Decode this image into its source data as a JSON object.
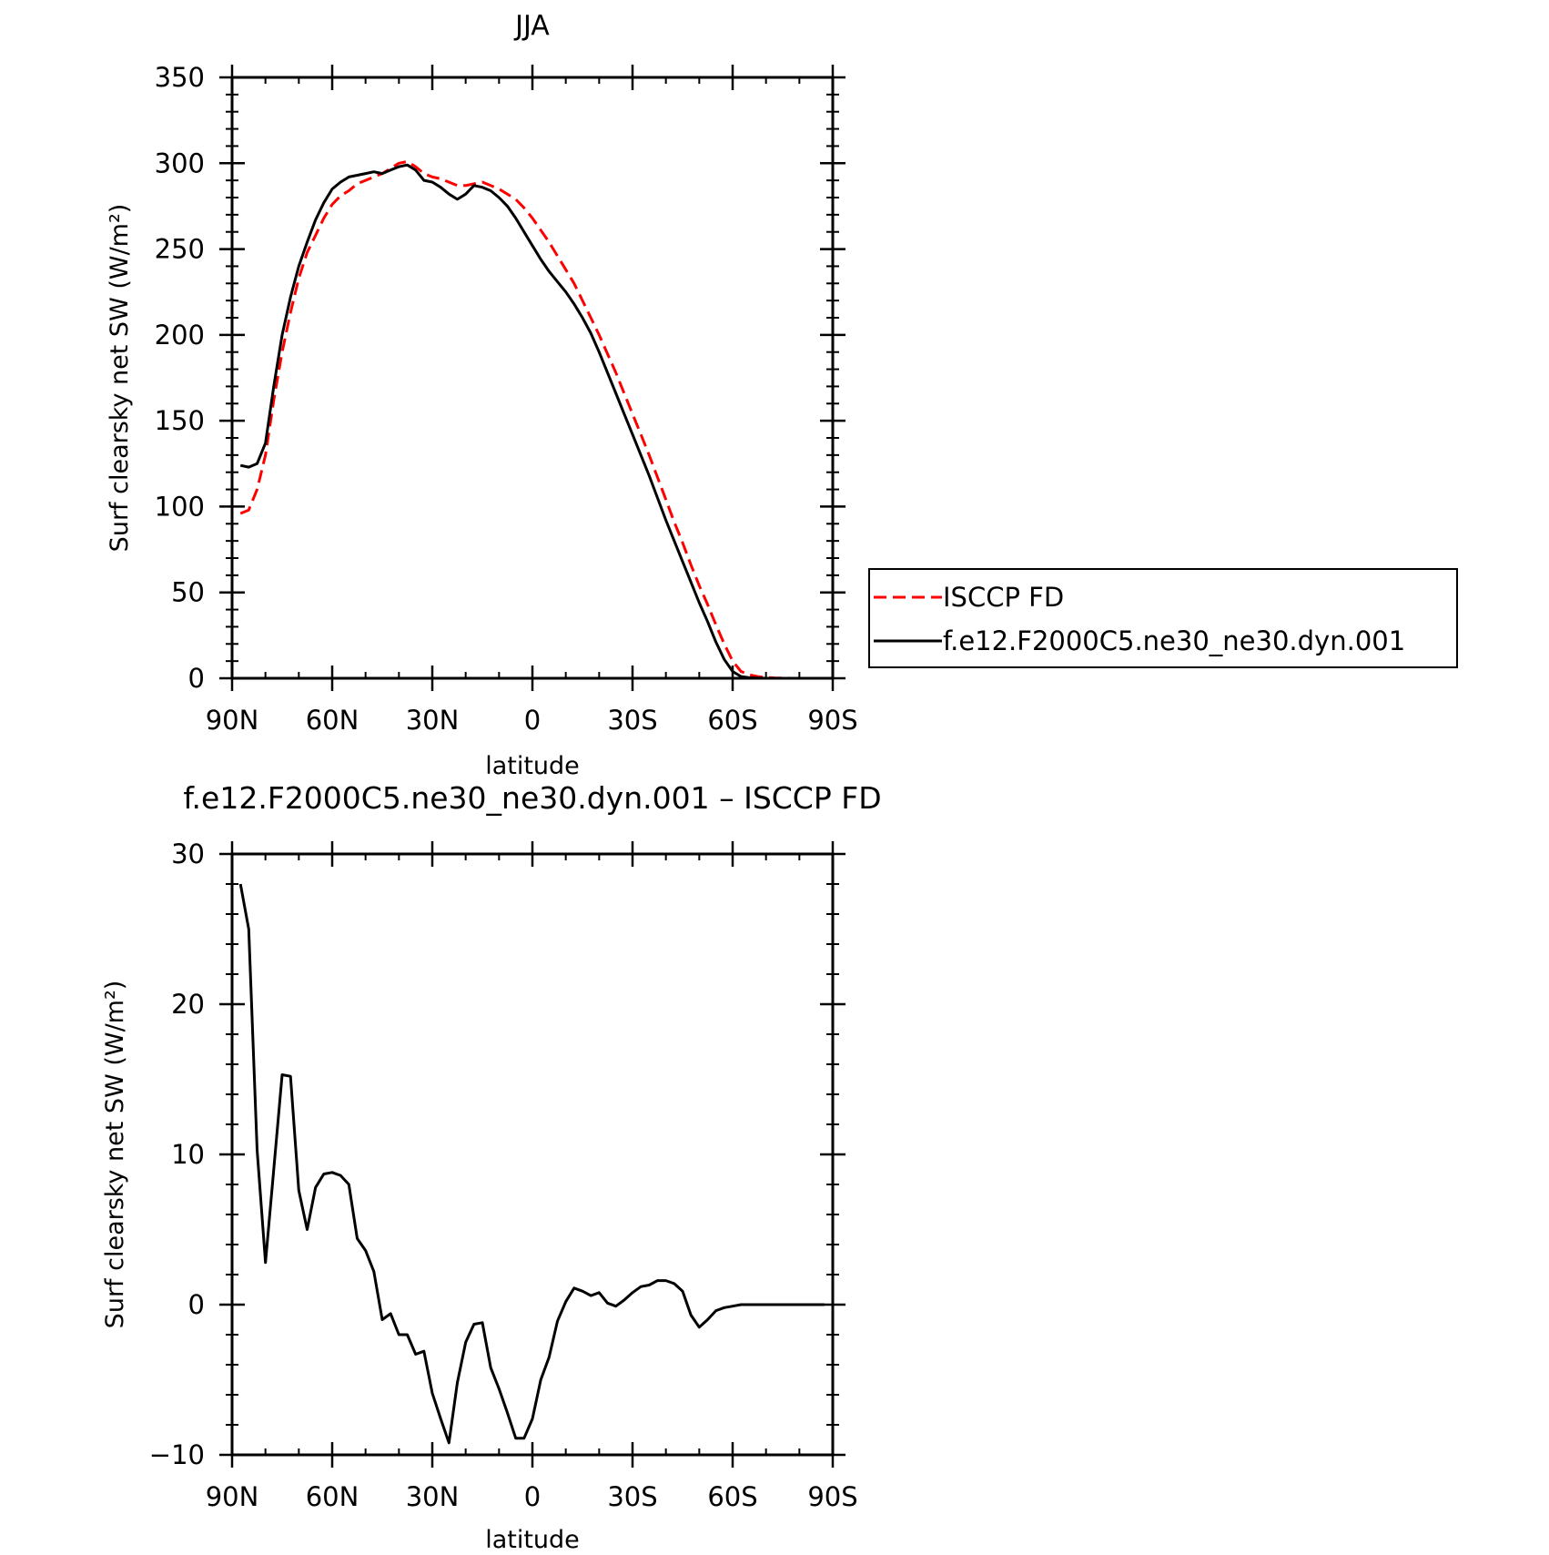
{
  "chart_data": [
    {
      "type": "line",
      "title": "JJA",
      "xlabel": "latitude",
      "ylabel": "Surf clearsky net SW (W/m²)",
      "xlim": [
        90,
        -90
      ],
      "ylim": [
        0,
        350
      ],
      "xticks": [
        "90N",
        "60N",
        "30N",
        "0",
        "30S",
        "60S",
        "90S"
      ],
      "yticks": [
        "0",
        "50",
        "100",
        "150",
        "200",
        "250",
        "300",
        "350"
      ],
      "legend": {
        "placement": "right",
        "entries": [
          "ISCCP FD",
          "f.e12.F2000C5.ne30_ne30.dyn.001"
        ]
      },
      "series": [
        {
          "name": "ISCCP FD",
          "color": "#ff0000",
          "style": "dashed",
          "x": [
            87.5,
            85,
            82.5,
            80,
            77.5,
            75,
            72.5,
            70,
            67.5,
            65,
            62.5,
            60,
            57.5,
            55,
            52.5,
            50,
            47.5,
            45,
            42.5,
            40,
            37.5,
            35,
            32.5,
            30,
            27.5,
            25,
            22.5,
            20,
            17.5,
            15,
            12.5,
            10,
            7.5,
            5,
            2.5,
            0,
            -2.5,
            -5,
            -7.5,
            -10,
            -12.5,
            -15,
            -17.5,
            -20,
            -22.5,
            -25,
            -27.5,
            -30,
            -32.5,
            -35,
            -37.5,
            -40,
            -42.5,
            -45,
            -47.5,
            -50,
            -52.5,
            -55,
            -57.5,
            -60,
            -62.5,
            -65,
            -67.5,
            -70,
            -72.5,
            -75,
            -77.5
          ],
          "y": [
            96,
            98,
            110,
            130,
            162,
            190,
            213,
            233,
            248,
            258,
            268,
            276,
            281,
            284,
            288,
            290,
            292,
            294,
            297,
            300,
            301,
            298,
            294,
            292,
            291,
            289,
            287,
            287,
            288,
            289,
            287,
            285,
            282,
            279,
            274,
            268,
            261,
            254,
            246,
            238,
            230,
            220,
            210,
            200,
            189,
            178,
            166,
            154,
            142,
            130,
            117,
            104,
            91,
            79,
            66,
            54,
            43,
            31,
            20,
            10,
            4,
            2,
            1,
            0.5,
            0.2,
            0.1,
            0
          ]
        },
        {
          "name": "f.e12.F2000C5.ne30_ne30.dyn.001",
          "color": "#000000",
          "style": "solid",
          "x": [
            87.5,
            85,
            82.5,
            80,
            77.5,
            75,
            72.5,
            70,
            67.5,
            65,
            62.5,
            60,
            57.5,
            55,
            52.5,
            50,
            47.5,
            45,
            42.5,
            40,
            37.5,
            35,
            32.5,
            30,
            27.5,
            25,
            22.5,
            20,
            17.5,
            15,
            12.5,
            10,
            7.5,
            5,
            2.5,
            0,
            -2.5,
            -5,
            -7.5,
            -10,
            -12.5,
            -15,
            -17.5,
            -20,
            -22.5,
            -25,
            -27.5,
            -30,
            -32.5,
            -35,
            -37.5,
            -40,
            -42.5,
            -45,
            -47.5,
            -50,
            -52.5,
            -55,
            -57.5,
            -60,
            -62.5,
            -65,
            -67.5,
            -70,
            -72.5,
            -75,
            -77.5
          ],
          "y": [
            124,
            123,
            125,
            137,
            170,
            200,
            222,
            240,
            254,
            267,
            277,
            285,
            289,
            292,
            293,
            294,
            295,
            294,
            296,
            298,
            299,
            296,
            290,
            289,
            286,
            282,
            279,
            282,
            287,
            286,
            284,
            280,
            275,
            268,
            260,
            252,
            244,
            237,
            231,
            225,
            218,
            210,
            201,
            190,
            178,
            166,
            154,
            142,
            130,
            118,
            105,
            92,
            80,
            68,
            56,
            44,
            33,
            21,
            11,
            4,
            1,
            0.3,
            0.1,
            0,
            0,
            0,
            0
          ]
        }
      ]
    },
    {
      "type": "line",
      "title": "f.e12.F2000C5.ne30_ne30.dyn.001 – ISCCP FD",
      "xlabel": "latitude",
      "ylabel": "Surf clearsky net SW (W/m²)",
      "xlim": [
        90,
        -90
      ],
      "ylim": [
        -10,
        30
      ],
      "xticks": [
        "90N",
        "60N",
        "30N",
        "0",
        "30S",
        "60S",
        "90S"
      ],
      "yticks": [
        "−10",
        "0",
        "10",
        "20",
        "30"
      ],
      "series": [
        {
          "color": "#000000",
          "style": "solid",
          "x": [
            87.5,
            85,
            82.5,
            80,
            77.5,
            75,
            72.5,
            70,
            67.5,
            65,
            62.5,
            60,
            57.5,
            55,
            52.5,
            50,
            47.5,
            45,
            42.5,
            40,
            37.5,
            35,
            32.5,
            30,
            27.5,
            25,
            22.5,
            20,
            17.5,
            15,
            12.5,
            10,
            7.5,
            5,
            2.5,
            0,
            -2.5,
            -5,
            -7.5,
            -10,
            -12.5,
            -15,
            -17.5,
            -20,
            -22.5,
            -25,
            -27.5,
            -30,
            -32.5,
            -35,
            -37.5,
            -40,
            -42.5,
            -45,
            -47.5,
            -50,
            -52.5,
            -55,
            -57.5,
            -60,
            -62.5,
            -65,
            -67.5,
            -70,
            -72.5,
            -75,
            -77.5,
            -80,
            -82.5,
            -85,
            -87.5
          ],
          "y": [
            28,
            25,
            10.3,
            2.8,
            9.0,
            15.3,
            15.2,
            7.6,
            5.0,
            7.8,
            8.7,
            8.8,
            8.6,
            8.0,
            4.4,
            3.6,
            2.2,
            -1.0,
            -0.6,
            -2.0,
            -2.0,
            -3.3,
            -3.1,
            -5.9,
            -7.6,
            -9.2,
            -5.2,
            -2.5,
            -1.3,
            -1.2,
            -4.2,
            -5.6,
            -7.2,
            -8.9,
            -8.9,
            -7.6,
            -5.0,
            -3.5,
            -1.1,
            0.2,
            1.1,
            0.9,
            0.6,
            0.8,
            0.1,
            -0.1,
            0.3,
            0.8,
            1.2,
            1.3,
            1.6,
            1.6,
            1.4,
            0.9,
            -0.7,
            -1.5,
            -1.0,
            -0.4,
            -0.2,
            -0.1,
            0,
            0,
            0,
            0,
            0,
            0,
            0,
            0,
            0,
            0,
            0
          ]
        }
      ]
    }
  ]
}
